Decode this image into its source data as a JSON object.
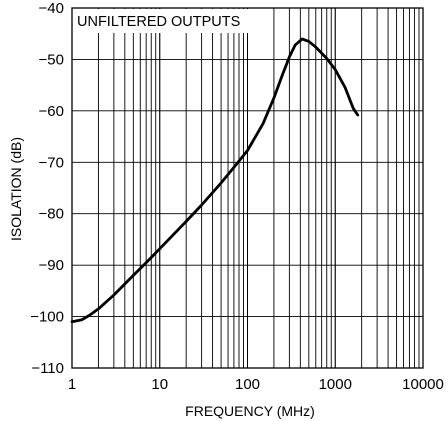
{
  "chart_data": {
    "type": "line",
    "xlabel": "FREQUENCY (MHz)",
    "ylabel": "ISOLATION (dB)",
    "annotation": "UNFILTERED OUTPUTS",
    "x_scale": "log",
    "xlim": [
      1,
      10000
    ],
    "ylim": [
      -110,
      -40
    ],
    "grid": true,
    "x_tick_labels": [
      "1",
      "10",
      "100",
      "1000",
      "10000"
    ],
    "y_tick_labels": [
      "-40",
      "-50",
      "-60",
      "-70",
      "-80",
      "-90",
      "-100",
      "-110"
    ],
    "series": [
      {
        "color": "#000000",
        "points": [
          [
            1,
            -101
          ],
          [
            1.3,
            -100.6
          ],
          [
            1.6,
            -99.7
          ],
          [
            2,
            -98.5
          ],
          [
            3,
            -95.8
          ],
          [
            5,
            -92
          ],
          [
            7,
            -89.5
          ],
          [
            10,
            -86.8
          ],
          [
            20,
            -81.5
          ],
          [
            30,
            -78.3
          ],
          [
            50,
            -74
          ],
          [
            70,
            -71
          ],
          [
            100,
            -67.7
          ],
          [
            150,
            -62.5
          ],
          [
            200,
            -57.5
          ],
          [
            250,
            -53
          ],
          [
            300,
            -49.5
          ],
          [
            350,
            -47.2
          ],
          [
            420,
            -46
          ],
          [
            500,
            -46.5
          ],
          [
            600,
            -47.6
          ],
          [
            800,
            -49.8
          ],
          [
            1000,
            -52
          ],
          [
            1300,
            -55.5
          ],
          [
            1600,
            -59.5
          ],
          [
            1800,
            -60.8
          ]
        ]
      }
    ]
  }
}
